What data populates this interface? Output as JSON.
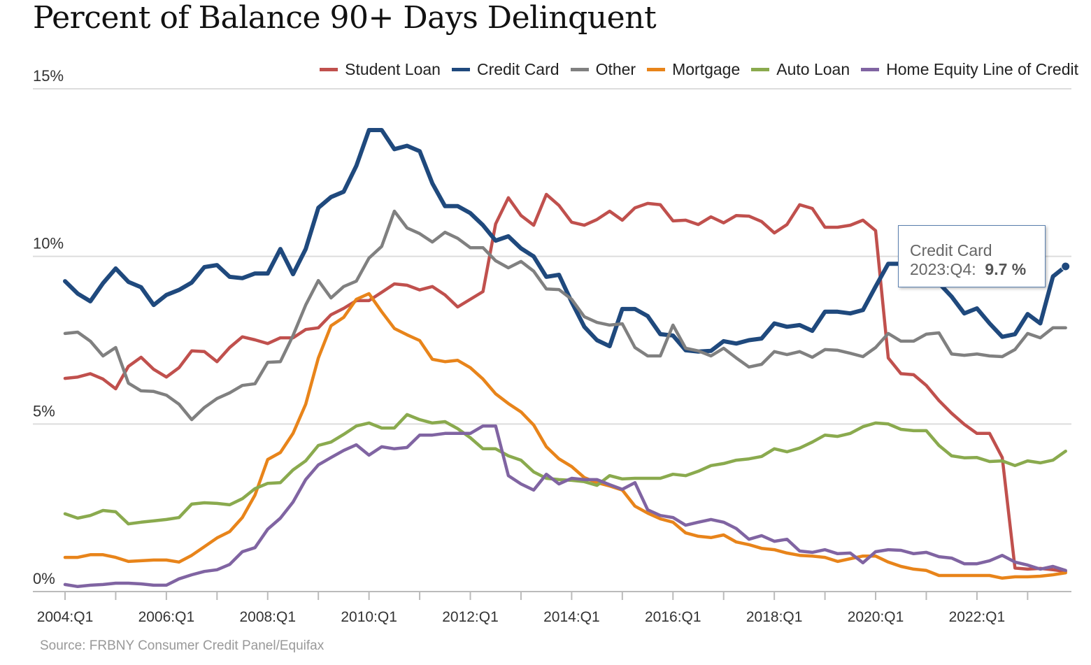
{
  "chart_data": {
    "type": "line",
    "title": "Percent of Balance 90+ Days Delinquent",
    "source": "Source: FRBNY Consumer Credit Panel/Equifax",
    "ylim": [
      0,
      15
    ],
    "yticks": [
      "0%",
      "5%",
      "10%",
      "15%"
    ],
    "ytick_values": [
      0,
      5,
      10,
      15
    ],
    "x_start": "2004:Q1",
    "x_end": "2023:Q4",
    "xtick_labels": [
      "2004:Q1",
      "2006:Q1",
      "2008:Q1",
      "2010:Q1",
      "2012:Q1",
      "2014:Q1",
      "2016:Q1",
      "2018:Q1",
      "2020:Q1",
      "2022:Q1"
    ],
    "grid": true,
    "legend_position": "top-right",
    "series": [
      {
        "name": "Student Loan",
        "color": "#c0504d",
        "values": [
          6.36,
          6.4,
          6.5,
          6.34,
          6.05,
          6.72,
          6.99,
          6.63,
          6.4,
          6.68,
          7.18,
          7.16,
          6.86,
          7.28,
          7.6,
          7.51,
          7.4,
          7.57,
          7.57,
          7.82,
          7.87,
          8.26,
          8.45,
          8.68,
          8.68,
          8.93,
          9.18,
          9.14,
          9.0,
          9.1,
          8.85,
          8.49,
          8.72,
          8.95,
          10.97,
          11.75,
          11.22,
          10.93,
          11.85,
          11.52,
          11.02,
          10.93,
          11.1,
          11.35,
          11.08,
          11.45,
          11.58,
          11.54,
          11.06,
          11.08,
          10.95,
          11.18,
          11.0,
          11.22,
          11.2,
          11.04,
          10.7,
          10.95,
          11.54,
          11.43,
          10.87,
          10.87,
          10.93,
          11.08,
          10.77,
          6.97,
          6.5,
          6.47,
          6.15,
          5.7,
          5.32,
          4.99,
          4.72,
          4.72,
          4.0,
          0.7,
          0.67,
          0.69,
          0.65,
          0.6
        ]
      },
      {
        "name": "Credit Card",
        "color": "#1f497d",
        "values": [
          9.26,
          8.89,
          8.66,
          9.2,
          9.64,
          9.24,
          9.08,
          8.55,
          8.85,
          9.0,
          9.22,
          9.68,
          9.74,
          9.39,
          9.35,
          9.49,
          9.49,
          10.22,
          9.47,
          10.22,
          11.45,
          11.77,
          11.93,
          12.7,
          13.77,
          13.77,
          13.2,
          13.3,
          13.14,
          12.18,
          11.5,
          11.5,
          11.29,
          10.93,
          10.47,
          10.6,
          10.24,
          10.0,
          9.39,
          9.45,
          8.64,
          7.9,
          7.5,
          7.32,
          8.43,
          8.43,
          8.22,
          7.68,
          7.64,
          7.2,
          7.16,
          7.18,
          7.47,
          7.4,
          7.5,
          7.55,
          8.0,
          7.9,
          7.95,
          7.78,
          8.35,
          8.35,
          8.3,
          8.4,
          9.1,
          9.78,
          9.78,
          9.76,
          9.4,
          9.2,
          8.8,
          8.3,
          8.45,
          8.0,
          7.6,
          7.68,
          8.28,
          8.0,
          9.4,
          9.7
        ]
      },
      {
        "name": "Other",
        "color": "#808080",
        "values": [
          7.7,
          7.74,
          7.47,
          7.03,
          7.28,
          6.22,
          5.99,
          5.97,
          5.86,
          5.59,
          5.13,
          5.49,
          5.76,
          5.93,
          6.15,
          6.2,
          6.84,
          6.86,
          7.64,
          8.55,
          9.28,
          8.76,
          9.1,
          9.26,
          9.95,
          10.3,
          11.35,
          10.85,
          10.68,
          10.43,
          10.72,
          10.54,
          10.26,
          10.26,
          9.87,
          9.66,
          9.85,
          9.56,
          9.03,
          9.01,
          8.72,
          8.2,
          8.03,
          7.95,
          7.99,
          7.28,
          7.03,
          7.03,
          7.95,
          7.26,
          7.18,
          7.03,
          7.26,
          6.97,
          6.7,
          6.78,
          7.16,
          7.07,
          7.16,
          6.99,
          7.22,
          7.2,
          7.11,
          7.01,
          7.28,
          7.7,
          7.47,
          7.47,
          7.68,
          7.72,
          7.09,
          7.05,
          7.09,
          7.03,
          7.01,
          7.22,
          7.7,
          7.57,
          7.87,
          7.87
        ]
      },
      {
        "name": "Mortgage",
        "color": "#e8841a",
        "values": [
          1.02,
          1.02,
          1.1,
          1.1,
          1.02,
          0.9,
          0.92,
          0.94,
          0.94,
          0.88,
          1.08,
          1.34,
          1.6,
          1.79,
          2.21,
          2.88,
          3.94,
          4.15,
          4.72,
          5.59,
          6.97,
          7.93,
          8.18,
          8.72,
          8.89,
          8.35,
          7.85,
          7.66,
          7.49,
          6.93,
          6.86,
          6.9,
          6.68,
          6.34,
          5.9,
          5.61,
          5.36,
          4.97,
          4.32,
          3.96,
          3.73,
          3.4,
          3.25,
          3.15,
          3.03,
          2.55,
          2.34,
          2.17,
          2.07,
          1.75,
          1.65,
          1.61,
          1.69,
          1.48,
          1.4,
          1.29,
          1.25,
          1.15,
          1.08,
          1.06,
          1.02,
          0.9,
          0.98,
          1.06,
          1.06,
          0.88,
          0.75,
          0.67,
          0.63,
          0.48,
          0.48,
          0.48,
          0.48,
          0.48,
          0.4,
          0.44,
          0.44,
          0.46,
          0.5,
          0.56
        ]
      },
      {
        "name": "Auto Loan",
        "color": "#8aaa4e",
        "values": [
          2.32,
          2.19,
          2.27,
          2.42,
          2.38,
          2.02,
          2.07,
          2.11,
          2.15,
          2.21,
          2.61,
          2.65,
          2.63,
          2.59,
          2.77,
          3.07,
          3.23,
          3.25,
          3.63,
          3.9,
          4.36,
          4.46,
          4.69,
          4.94,
          5.03,
          4.88,
          4.88,
          5.28,
          5.13,
          5.03,
          5.07,
          4.86,
          4.59,
          4.26,
          4.26,
          4.05,
          3.92,
          3.57,
          3.38,
          3.34,
          3.32,
          3.28,
          3.17,
          3.46,
          3.36,
          3.38,
          3.38,
          3.38,
          3.5,
          3.46,
          3.59,
          3.76,
          3.82,
          3.92,
          3.96,
          4.03,
          4.26,
          4.17,
          4.28,
          4.46,
          4.67,
          4.63,
          4.72,
          4.92,
          5.03,
          5.0,
          4.84,
          4.8,
          4.8,
          4.36,
          4.05,
          3.99,
          4.0,
          3.88,
          3.9,
          3.76,
          3.9,
          3.84,
          3.92,
          4.19
        ]
      },
      {
        "name": "Home Equity Line of Credit",
        "color": "#8064a2",
        "values": [
          0.21,
          0.15,
          0.19,
          0.21,
          0.25,
          0.25,
          0.23,
          0.19,
          0.19,
          0.38,
          0.5,
          0.6,
          0.65,
          0.81,
          1.19,
          1.31,
          1.86,
          2.19,
          2.67,
          3.34,
          3.78,
          4.0,
          4.21,
          4.38,
          4.07,
          4.32,
          4.26,
          4.3,
          4.67,
          4.67,
          4.72,
          4.72,
          4.72,
          4.94,
          4.94,
          3.46,
          3.21,
          3.03,
          3.5,
          3.21,
          3.38,
          3.34,
          3.34,
          3.19,
          3.05,
          3.25,
          2.44,
          2.27,
          2.21,
          1.98,
          2.07,
          2.15,
          2.07,
          1.88,
          1.56,
          1.67,
          1.5,
          1.56,
          1.21,
          1.17,
          1.25,
          1.13,
          1.15,
          0.86,
          1.19,
          1.25,
          1.23,
          1.13,
          1.17,
          1.04,
          1.0,
          0.83,
          0.83,
          0.92,
          1.08,
          0.88,
          0.79,
          0.67,
          0.75,
          0.63
        ]
      }
    ],
    "tooltip": {
      "series": "Credit Card",
      "period": "2023:Q4:",
      "value": "9.7 %"
    }
  }
}
